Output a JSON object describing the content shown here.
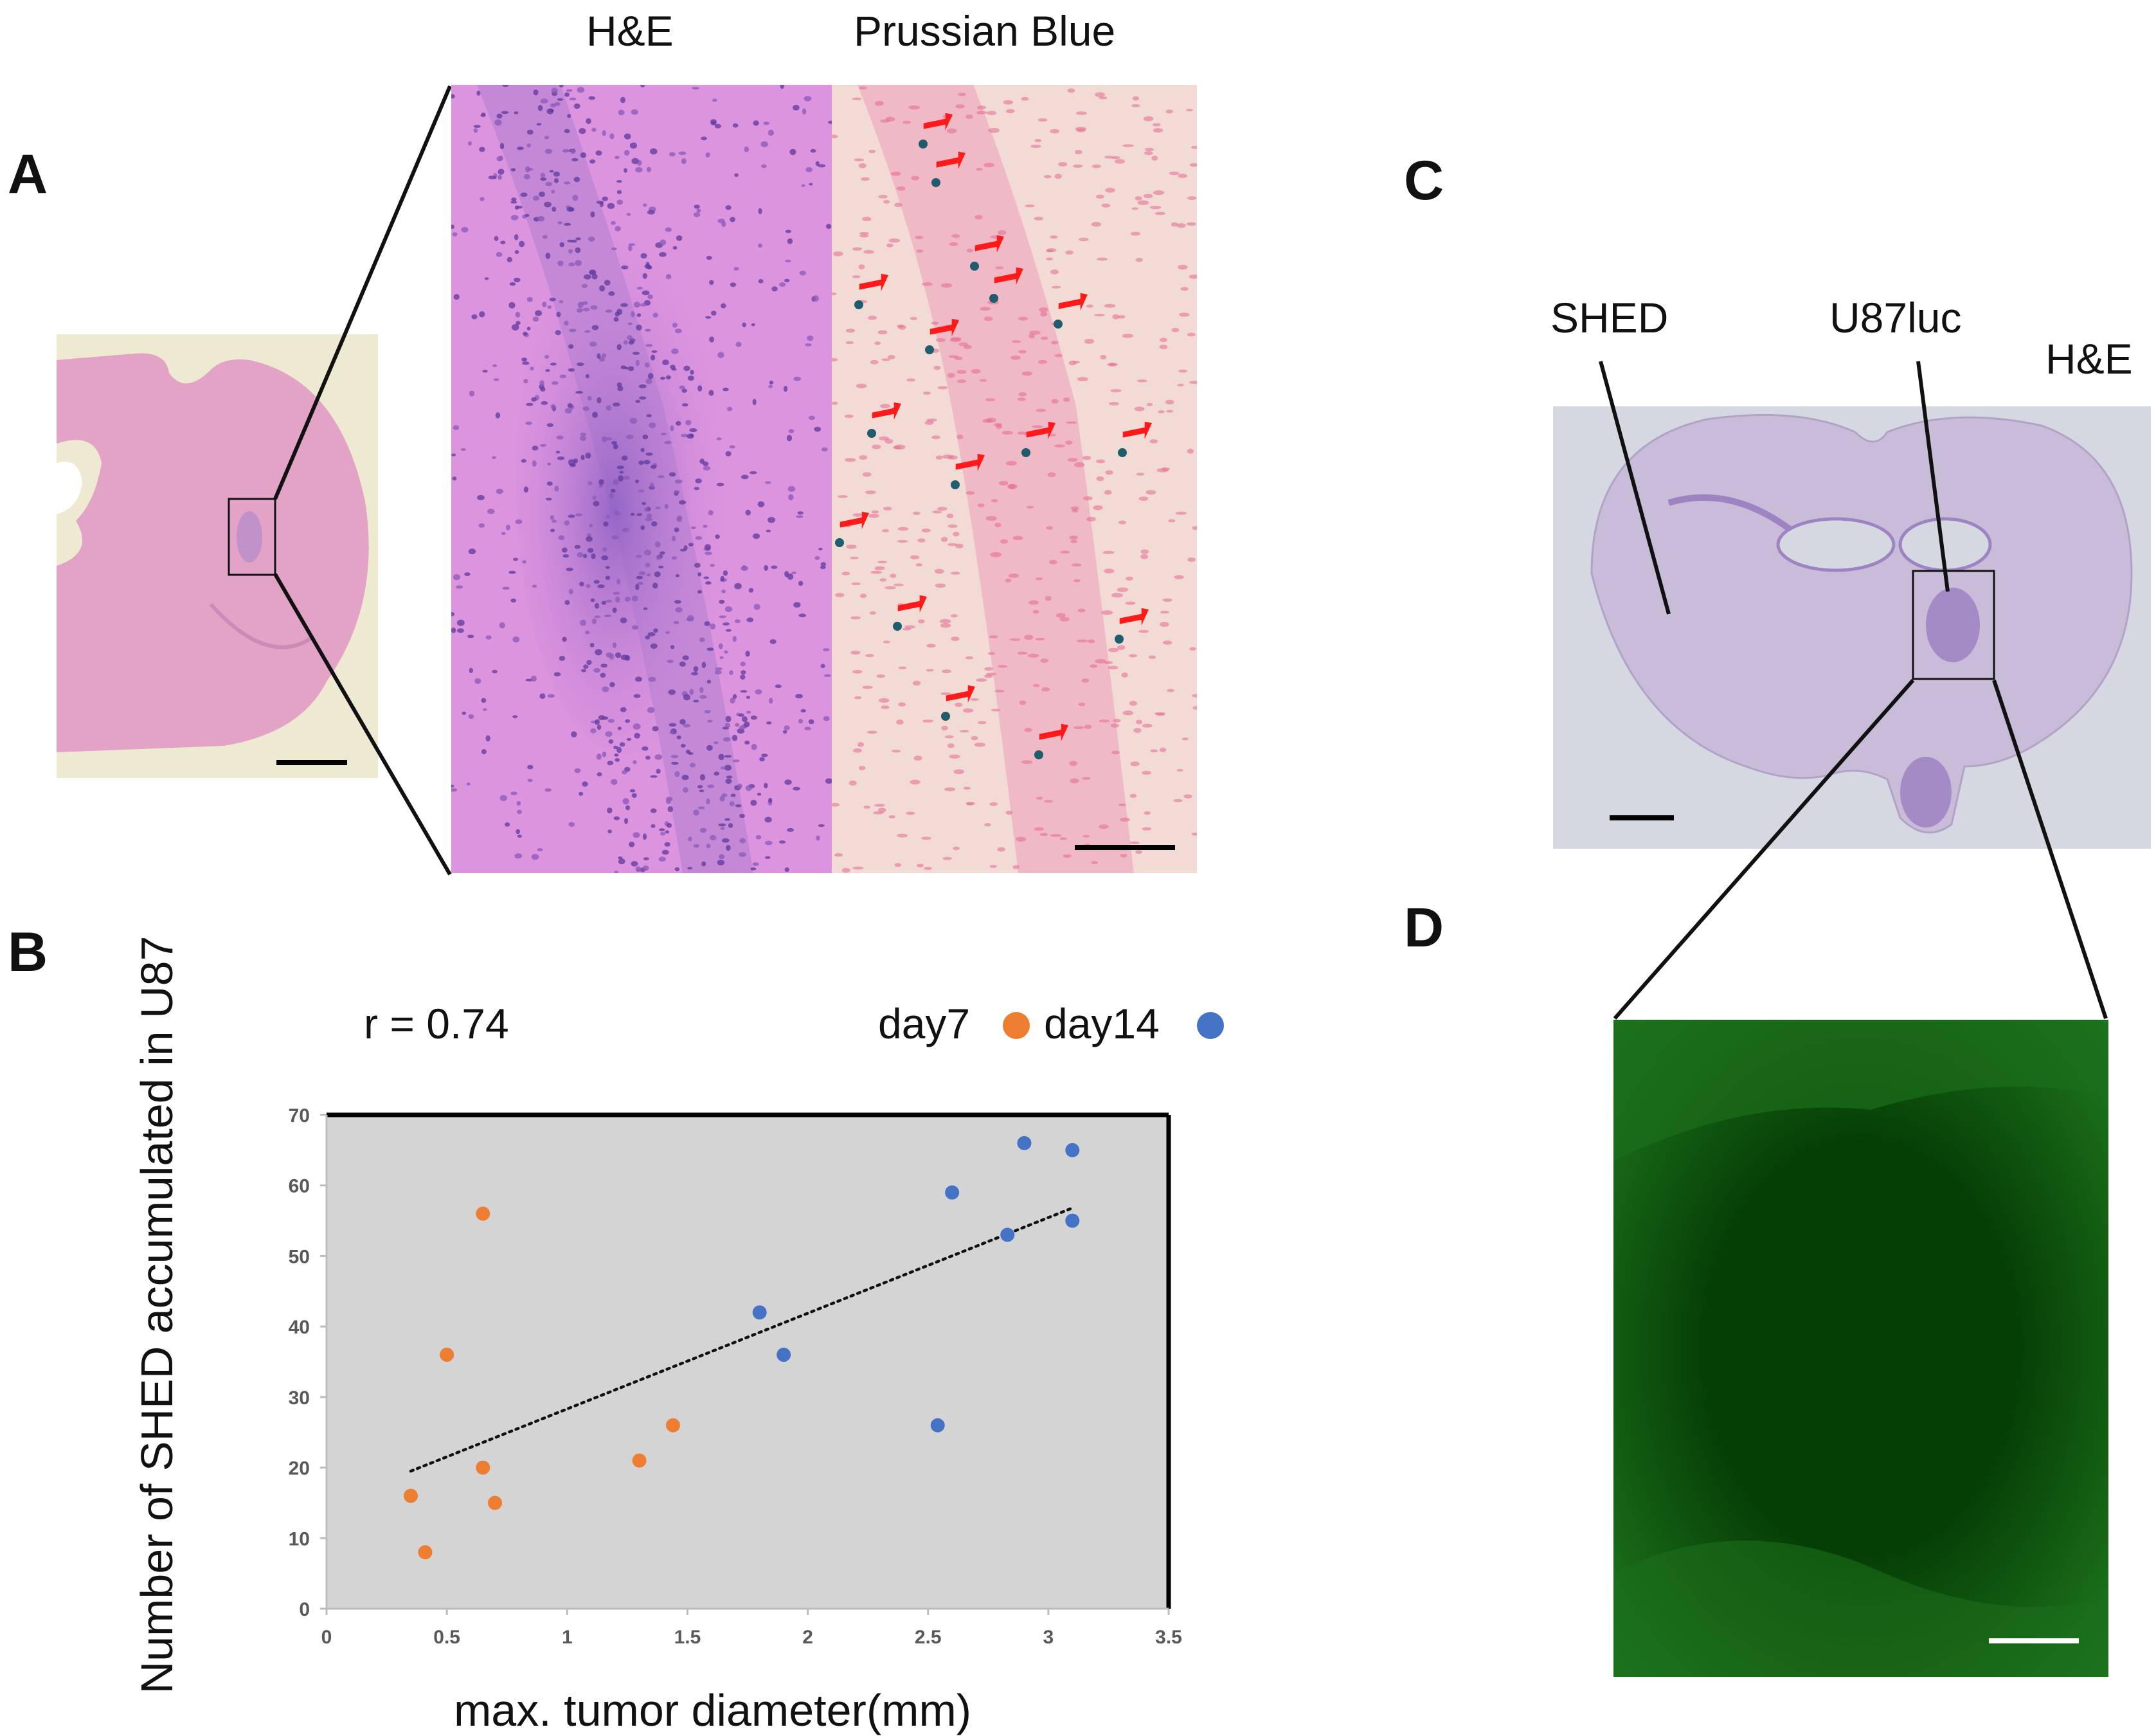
{
  "panels": {
    "a": {
      "letter": "A",
      "label_he": "H&E",
      "label_pb": "Prussian Blue",
      "colors": {
        "he": "#d890dc",
        "pb": "#f1c3d4",
        "arrow": "#ff1a1a",
        "iron": "#1f5d6e"
      }
    },
    "b": {
      "letter": "B",
      "correlation": "r = 0.74",
      "legend": {
        "day7": "day7",
        "day14": "day14"
      }
    },
    "c": {
      "letter": "C",
      "label_shed": "SHED",
      "label_u87": "U87luc",
      "label_he": "H&E",
      "colors": {
        "tissue": "#c9bad9",
        "background": "#d6d8e1"
      }
    },
    "d": {
      "letter": "D",
      "colors": {
        "background": "#063f06",
        "signal": "#39b839"
      }
    }
  },
  "chart_data": {
    "type": "scatter",
    "xlabel": "max. tumor diameter(mm)",
    "ylabel": "Number of SHED accumulated in U87",
    "xlim": [
      0,
      3.5
    ],
    "ylim": [
      0,
      70
    ],
    "xticks": [
      0,
      0.5,
      1,
      1.5,
      2,
      2.5,
      3,
      3.5
    ],
    "xtick_labels": [
      "0",
      "0.5",
      "1",
      "1.5",
      "2",
      "2.5",
      "3",
      "3.5"
    ],
    "yticks": [
      0,
      10,
      20,
      30,
      40,
      50,
      60,
      70
    ],
    "ytick_labels": [
      "0",
      "10",
      "20",
      "30",
      "40",
      "50",
      "60",
      "70"
    ],
    "grid": false,
    "legend_position": "top-right",
    "plot_background": "#d4d4d4",
    "series": [
      {
        "name": "day7",
        "color": "#ed7d31",
        "points": [
          [
            0.35,
            16
          ],
          [
            0.41,
            8
          ],
          [
            0.5,
            36
          ],
          [
            0.65,
            56
          ],
          [
            0.65,
            20
          ],
          [
            0.7,
            15
          ],
          [
            1.3,
            21
          ],
          [
            1.44,
            26
          ]
        ]
      },
      {
        "name": "day14",
        "color": "#4472c4",
        "points": [
          [
            1.8,
            42
          ],
          [
            1.9,
            36
          ],
          [
            2.54,
            26
          ],
          [
            2.6,
            59
          ],
          [
            2.83,
            53
          ],
          [
            2.9,
            66
          ],
          [
            3.1,
            65
          ],
          [
            3.1,
            55
          ]
        ]
      }
    ],
    "trendline": {
      "style": "dotted",
      "x": [
        0.35,
        3.1
      ],
      "y": [
        19.5,
        56.8
      ]
    }
  }
}
